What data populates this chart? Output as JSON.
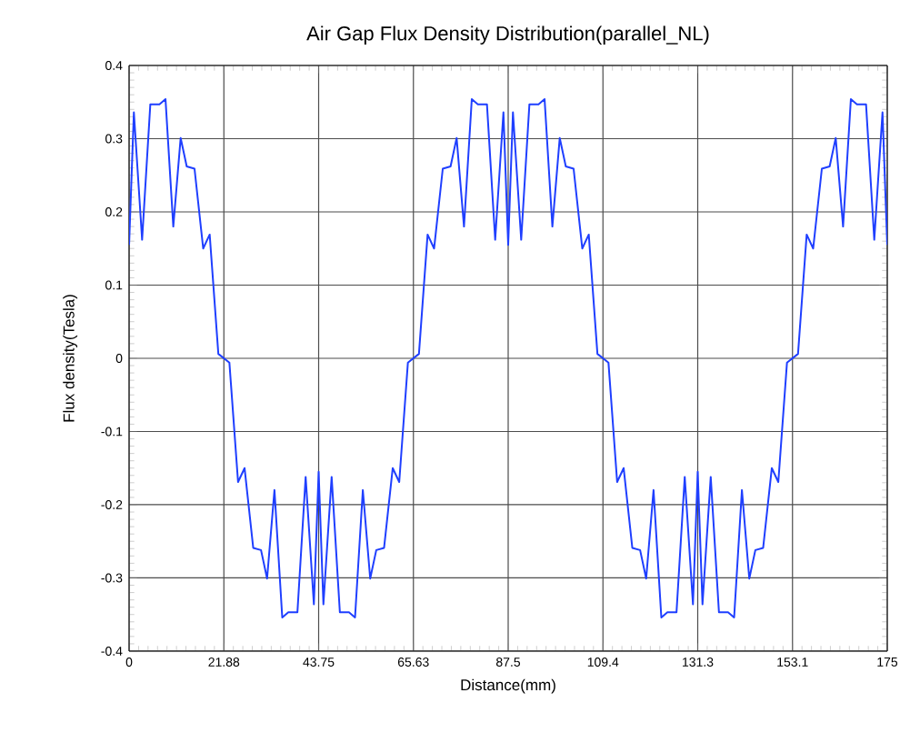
{
  "chart_data": {
    "type": "line",
    "title": "Air Gap Flux Density Distribution(parallel_NL)",
    "xlabel": "Distance(mm)",
    "ylabel": "Flux density(Tesla)",
    "x": [
      0,
      1.1,
      3.0,
      4.9,
      7.0,
      8.4,
      10.2,
      11.9,
      13.3,
      15.1,
      17.1,
      18.6,
      20.6,
      23.15,
      25.15,
      26.65,
      28.65,
      30.45,
      31.85,
      33.55,
      35.35,
      36.75,
      38.85,
      40.75,
      42.65,
      43.75,
      44.85,
      46.75,
      48.65,
      50.75,
      52.15,
      53.95,
      55.65,
      57.05,
      58.85,
      60.85,
      62.35,
      64.35,
      66.9,
      68.9,
      70.4,
      72.4,
      74.2,
      75.6,
      77.3,
      79.1,
      80.5,
      82.6,
      84.5,
      86.4,
      87.5,
      88.6,
      90.5,
      92.4,
      94.5,
      95.9,
      97.7,
      99.4,
      100.8,
      102.6,
      104.6,
      106.1,
      108.1,
      110.65,
      112.65,
      114.15,
      116.15,
      117.95,
      119.35,
      121.05,
      122.85,
      124.25,
      126.35,
      128.25,
      130.15,
      131.25,
      132.35,
      134.25,
      136.15,
      138.25,
      139.65,
      141.45,
      143.15,
      144.55,
      146.35,
      148.35,
      149.85,
      151.85,
      154.4,
      156.4,
      157.9,
      159.9,
      161.7,
      163.1,
      164.8,
      166.6,
      168.0,
      170.1,
      172.0,
      173.9,
      175
    ],
    "series": [
      {
        "color": "#1f3fff",
        "values": [
          0.155,
          0.336,
          0.162,
          0.347,
          0.347,
          0.354,
          0.18,
          0.301,
          0.262,
          0.259,
          0.15,
          0.169,
          0.006,
          -0.006,
          -0.169,
          -0.15,
          -0.259,
          -0.262,
          -0.301,
          -0.18,
          -0.354,
          -0.347,
          -0.347,
          -0.162,
          -0.336,
          -0.155,
          -0.336,
          -0.162,
          -0.347,
          -0.347,
          -0.354,
          -0.18,
          -0.301,
          -0.262,
          -0.259,
          -0.15,
          -0.169,
          -0.006,
          0.006,
          0.169,
          0.15,
          0.259,
          0.262,
          0.301,
          0.18,
          0.354,
          0.347,
          0.347,
          0.162,
          0.336,
          0.155,
          0.336,
          0.162,
          0.347,
          0.347,
          0.354,
          0.18,
          0.301,
          0.262,
          0.259,
          0.15,
          0.169,
          0.006,
          -0.006,
          -0.169,
          -0.15,
          -0.259,
          -0.262,
          -0.301,
          -0.18,
          -0.354,
          -0.347,
          -0.347,
          -0.162,
          -0.336,
          -0.155,
          -0.336,
          -0.162,
          -0.347,
          -0.347,
          -0.354,
          -0.18,
          -0.301,
          -0.262,
          -0.259,
          -0.15,
          -0.169,
          -0.006,
          0.006,
          0.169,
          0.15,
          0.259,
          0.262,
          0.301,
          0.18,
          0.354,
          0.347,
          0.347,
          0.162,
          0.336,
          0.155
        ]
      }
    ],
    "xlim": [
      0,
      175
    ],
    "ylim": [
      -0.4,
      0.4
    ],
    "xticks": [
      0,
      {
        "value": 21.875,
        "label": "21.88"
      },
      {
        "value": 43.75,
        "label": "43.75"
      },
      {
        "value": 65.625,
        "label": "65.63"
      },
      87.5,
      {
        "value": 109.375,
        "label": "109.4"
      },
      {
        "value": 131.25,
        "label": "131.3"
      },
      {
        "value": 153.125,
        "label": "153.1"
      },
      175
    ],
    "yticks": [
      -0.4,
      -0.3,
      -0.2,
      -0.1,
      0,
      0.1,
      0.2,
      0.3,
      0.4
    ],
    "grid": true,
    "marker": "none",
    "line_style": "solid"
  }
}
